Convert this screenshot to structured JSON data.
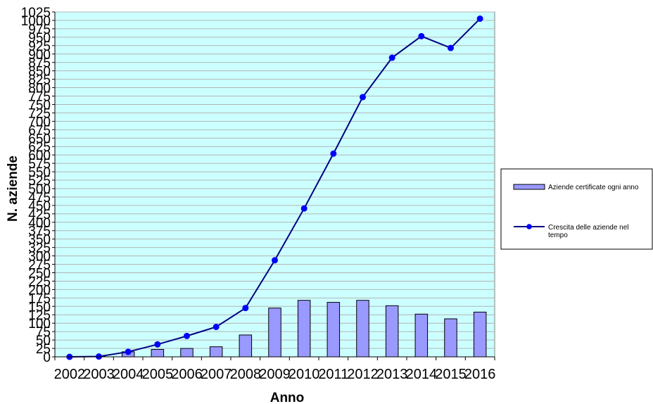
{
  "chart_data": {
    "type": "bar",
    "title": "",
    "xlabel": "Anno",
    "ylabel": "N. aziende",
    "categories": [
      "2002",
      "2003",
      "2004",
      "2005",
      "2006",
      "2007",
      "2008",
      "2009",
      "2010",
      "2011",
      "2012",
      "2013",
      "2014",
      "2015",
      "2016"
    ],
    "ylim": [
      0,
      1025
    ],
    "ytick_step": 25,
    "grid": true,
    "legend_position": "right",
    "colors": {
      "plot_bg": "#ccffff",
      "grid": "#b4b4b4",
      "bar_fill": "#9999ff",
      "bar_stroke": "#000000",
      "line": "#000080",
      "marker": "#0000ff"
    },
    "series": [
      {
        "name": "Aziende certificate ogni anno",
        "type": "bar",
        "values": [
          0,
          1,
          15,
          22,
          25,
          30,
          65,
          145,
          168,
          162,
          168,
          152,
          127,
          113,
          133
        ]
      },
      {
        "name": "Crescita delle aziende nel tempo",
        "type": "line",
        "values": [
          0,
          1,
          15,
          37,
          62,
          89,
          145,
          287,
          441,
          604,
          772,
          889,
          953,
          918,
          1005
        ]
      }
    ]
  }
}
